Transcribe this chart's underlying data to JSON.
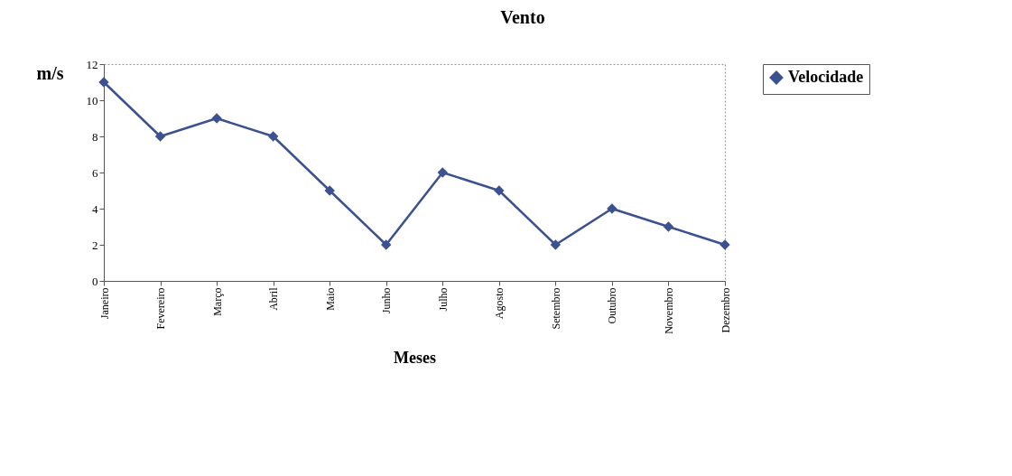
{
  "chart_data": {
    "type": "line",
    "title": "Vento",
    "xlabel": "Meses",
    "ylabel": "m/s",
    "categories": [
      "Janeiro",
      "Fevereiro",
      "Março",
      "Abril",
      "Maio",
      "Junho",
      "Julho",
      "Agosto",
      "Setembro",
      "Outubro",
      "Novembro",
      "Dezembro"
    ],
    "series": [
      {
        "name": "Velocidade",
        "color": "#3b5190",
        "values": [
          11,
          8,
          9,
          8,
          5,
          2,
          6,
          5,
          2,
          4,
          3,
          2
        ]
      }
    ],
    "ylim": [
      0,
      12
    ],
    "yticks": [
      0,
      2,
      4,
      6,
      8,
      10,
      12
    ],
    "legend": "right",
    "marker": "diamond",
    "line_style": "solid"
  }
}
